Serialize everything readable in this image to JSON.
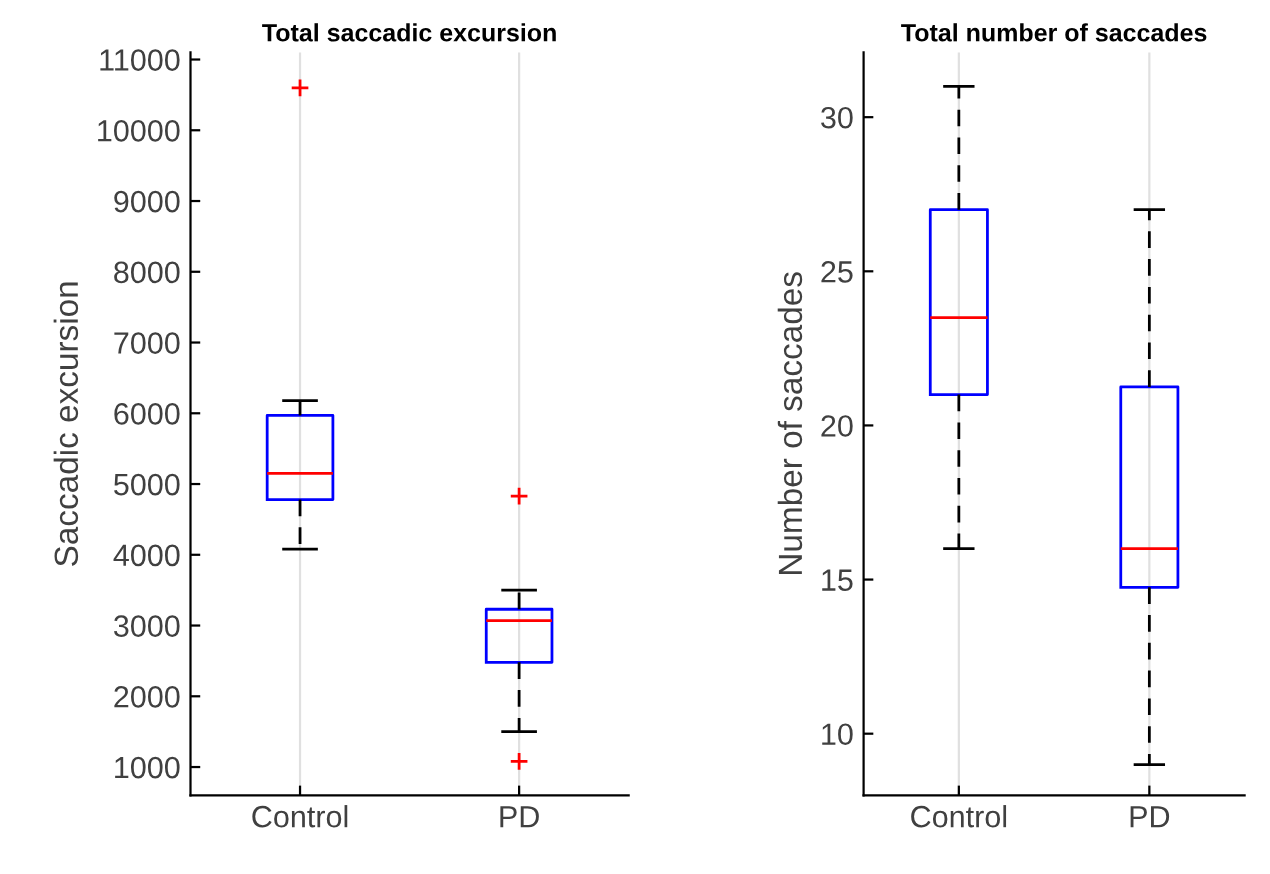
{
  "chart_data": [
    {
      "type": "box",
      "title": "Total saccadic excursion",
      "ylabel": "Saccadic excursion",
      "categories": [
        "Control",
        "PD"
      ],
      "boxes": [
        {
          "low": 4080,
          "q1": 4780,
          "median": 5150,
          "q3": 5970,
          "high": 6180,
          "outliers": [
            10600
          ]
        },
        {
          "low": 1500,
          "q1": 2480,
          "median": 3070,
          "q3": 3230,
          "high": 3500,
          "outliers": [
            4830,
            1080
          ]
        }
      ],
      "color": "#0000ff",
      "ylim": [
        600,
        11100
      ],
      "yticks": [
        1000,
        2000,
        3000,
        4000,
        5000,
        6000,
        7000,
        8000,
        9000,
        10000,
        11000
      ],
      "grid": "x",
      "line_style": "dashed"
    },
    {
      "type": "box",
      "title": "Total number of saccades",
      "ylabel": "Number of saccades",
      "categories": [
        "Control",
        "PD"
      ],
      "boxes": [
        {
          "low": 16,
          "q1": 21,
          "median": 23.5,
          "q3": 27,
          "high": 31
        },
        {
          "low": 9,
          "q1": 14.75,
          "median": 16,
          "q3": 21.25,
          "high": 27
        }
      ],
      "color": "#0000ff",
      "ylim": [
        8,
        32.1
      ],
      "yticks": [
        10,
        15,
        20,
        25,
        30
      ],
      "grid": "x",
      "line_style": "dashed"
    }
  ]
}
